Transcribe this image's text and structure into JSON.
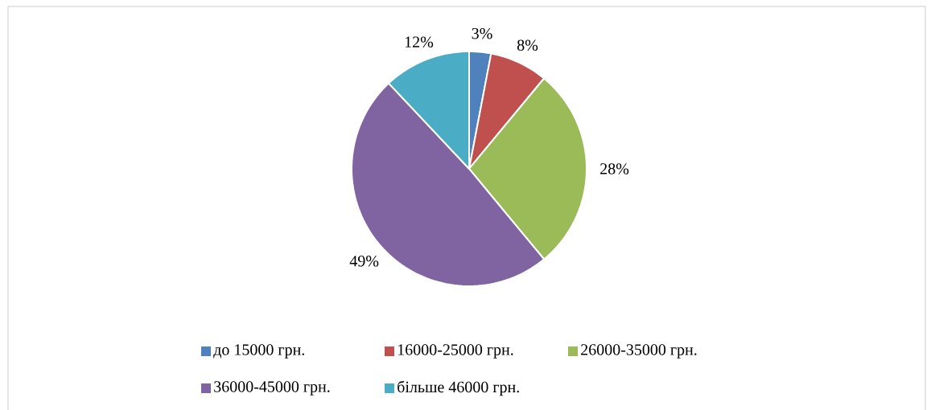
{
  "chart_data": {
    "type": "pie",
    "categories": [
      "до 15000 грн.",
      "16000-25000 грн.",
      "26000-35000 грн.",
      "36000-45000 грн.",
      "більше  46000 грн."
    ],
    "values": [
      3,
      8,
      28,
      49,
      12
    ],
    "colors": [
      "#4f81bd",
      "#c0504d",
      "#9bbb59",
      "#8064a2",
      "#4bacc6"
    ],
    "value_labels": [
      "3%",
      "8%",
      "28%",
      "49%",
      "12%"
    ],
    "legend": "bottom"
  }
}
